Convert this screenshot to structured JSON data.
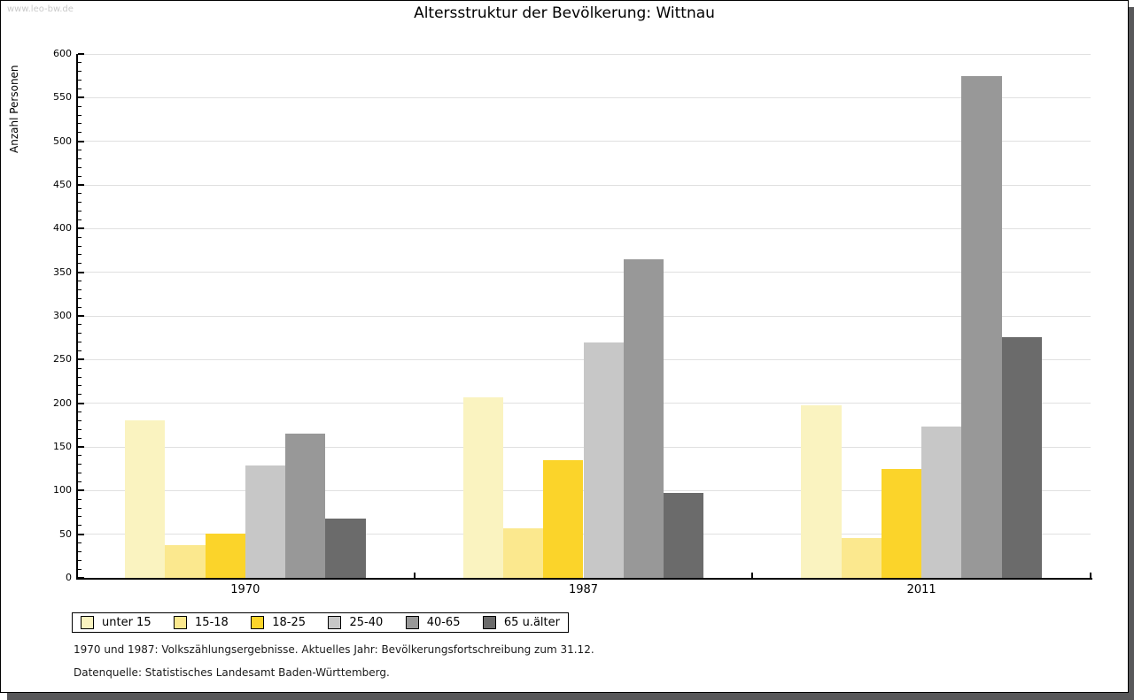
{
  "watermark": "www.leo-bw.de",
  "title": "Altersstruktur der Bevölkerung: Wittnau",
  "chart_data": {
    "type": "bar",
    "title": "Altersstruktur der Bevölkerung: Wittnau",
    "xlabel": "",
    "ylabel": "Anzahl Personen",
    "ylim": [
      0,
      600
    ],
    "yticks": [
      0,
      50,
      100,
      150,
      200,
      250,
      300,
      350,
      400,
      450,
      500,
      550,
      600
    ],
    "minor_tick_step": 10,
    "grid": true,
    "legend_position": "bottom-left",
    "categories": [
      "1970",
      "1987",
      "2011"
    ],
    "series": [
      {
        "name": "unter 15",
        "color": "#faf3c0",
        "values": [
          180,
          207,
          198
        ]
      },
      {
        "name": "15-18",
        "color": "#fbe88e",
        "values": [
          38,
          57,
          46
        ]
      },
      {
        "name": "18-25",
        "color": "#fbd42a",
        "values": [
          51,
          135,
          125
        ]
      },
      {
        "name": "25-40",
        "color": "#c7c7c7",
        "values": [
          129,
          270,
          173
        ]
      },
      {
        "name": "40-65",
        "color": "#989898",
        "values": [
          165,
          365,
          575
        ]
      },
      {
        "name": "65 u.älter",
        "color": "#6b6b6b",
        "values": [
          68,
          97,
          276
        ]
      }
    ]
  },
  "footer": {
    "line1": "1970 und 1987: Volkszählungsergebnisse. Aktuelles Jahr: Bevölkerungsfortschreibung zum 31.12.",
    "line2": "Datenquelle: Statistisches Landesamt Baden-Württemberg."
  }
}
